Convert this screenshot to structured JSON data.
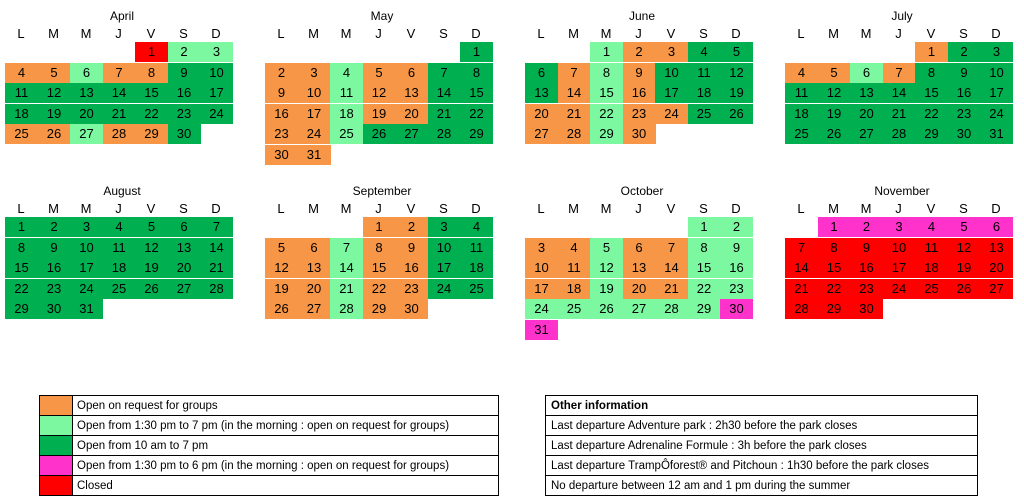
{
  "weekday_labels": [
    "L",
    "M",
    "M",
    "J",
    "V",
    "S",
    "D"
  ],
  "months": [
    {
      "name": "April",
      "start": 4,
      "statuses": [
        "r",
        "lg",
        "lg",
        "o",
        "o",
        "lg",
        "o",
        "o",
        "g",
        "g",
        "g",
        "g",
        "g",
        "g",
        "g",
        "g",
        "g",
        "g",
        "g",
        "g",
        "g",
        "g",
        "g",
        "g",
        "o",
        "o",
        "lg",
        "o",
        "o",
        "g"
      ]
    },
    {
      "name": "May",
      "start": 6,
      "statuses": [
        "g",
        "o",
        "o",
        "lg",
        "o",
        "o",
        "g",
        "g",
        "o",
        "o",
        "lg",
        "o",
        "o",
        "g",
        "g",
        "o",
        "o",
        "lg",
        "o",
        "o",
        "g",
        "g",
        "o",
        "o",
        "lg",
        "g",
        "g",
        "g",
        "g",
        "o",
        "o"
      ]
    },
    {
      "name": "June",
      "start": 2,
      "statuses": [
        "lg",
        "o",
        "o",
        "g",
        "g",
        "g",
        "o",
        "lg",
        "o",
        "g",
        "g",
        "g",
        "g",
        "o",
        "lg",
        "o",
        "g",
        "g",
        "g",
        "o",
        "o",
        "lg",
        "o",
        "o",
        "g",
        "g",
        "o",
        "o",
        "lg",
        "o"
      ]
    },
    {
      "name": "July",
      "start": 4,
      "statuses": [
        "o",
        "g",
        "g",
        "o",
        "o",
        "lg",
        "o",
        "g",
        "g",
        "g",
        "g",
        "g",
        "g",
        "g",
        "g",
        "g",
        "g",
        "g",
        "g",
        "g",
        "g",
        "g",
        "g",
        "g",
        "g",
        "g",
        "g",
        "g",
        "g",
        "g",
        "g"
      ]
    },
    {
      "name": "August",
      "start": 0,
      "statuses": [
        "g",
        "g",
        "g",
        "g",
        "g",
        "g",
        "g",
        "g",
        "g",
        "g",
        "g",
        "g",
        "g",
        "g",
        "g",
        "g",
        "g",
        "g",
        "g",
        "g",
        "g",
        "g",
        "g",
        "g",
        "g",
        "g",
        "g",
        "g",
        "g",
        "g",
        "g"
      ]
    },
    {
      "name": "September",
      "start": 3,
      "statuses": [
        "o",
        "o",
        "g",
        "g",
        "o",
        "o",
        "lg",
        "o",
        "o",
        "g",
        "g",
        "o",
        "o",
        "lg",
        "o",
        "o",
        "g",
        "g",
        "o",
        "o",
        "lg",
        "o",
        "o",
        "g",
        "g",
        "o",
        "o",
        "lg",
        "o",
        "o"
      ]
    },
    {
      "name": "October",
      "start": 5,
      "statuses": [
        "lg",
        "lg",
        "o",
        "o",
        "lg",
        "o",
        "o",
        "lg",
        "lg",
        "o",
        "o",
        "lg",
        "o",
        "o",
        "lg",
        "lg",
        "o",
        "o",
        "lg",
        "o",
        "o",
        "lg",
        "lg",
        "lg",
        "lg",
        "lg",
        "lg",
        "lg",
        "lg",
        "p",
        "p"
      ]
    },
    {
      "name": "November",
      "start": 1,
      "statuses": [
        "p",
        "p",
        "p",
        "p",
        "p",
        "p",
        "r",
        "r",
        "r",
        "r",
        "r",
        "r",
        "r",
        "r",
        "r",
        "r",
        "r",
        "r",
        "r",
        "r",
        "r",
        "r",
        "r",
        "r",
        "r",
        "r",
        "r",
        "r",
        "r",
        "r"
      ]
    }
  ],
  "status_colors": {
    "o": "#F79646",
    "lg": "#7CF9A0",
    "g": "#00B050",
    "p": "#FF33CC",
    "r": "#FF0000"
  },
  "legend": [
    {
      "status": "o",
      "label": "Open on request for groups"
    },
    {
      "status": "lg",
      "label": "Open from 1:30 pm to 7 pm (in the morning : open on request for groups)"
    },
    {
      "status": "g",
      "label": "Open from 10 am to 7 pm"
    },
    {
      "status": "p",
      "label": "Open from 1:30 pm to 6 pm (in the morning : open on request for groups)"
    },
    {
      "status": "r",
      "label": "Closed"
    }
  ],
  "other_info": {
    "title": "Other information",
    "lines": [
      "Last departure Adventure park : 2h30 before the park closes",
      "Last departure Adrenaline Formule : 3h before the park closes",
      "Last departure TrampÔforest® and Pitchoun : 1h30 before the park closes",
      "No departure between 12 am and 1 pm during the summer"
    ]
  }
}
